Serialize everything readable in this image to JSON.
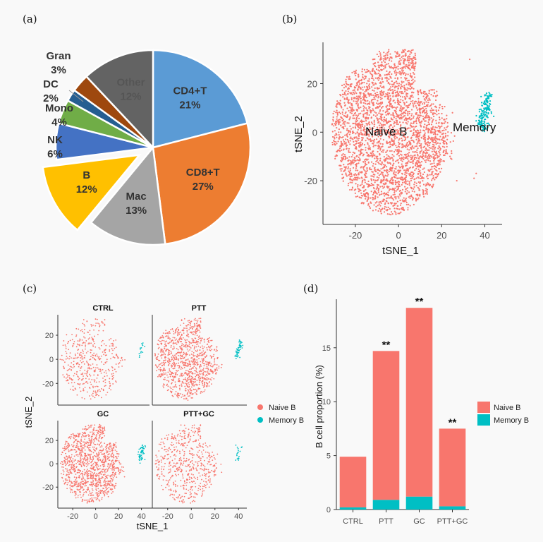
{
  "panel_labels": {
    "a": "(a)",
    "b": "(b)",
    "c": "(c)",
    "d": "(d)"
  },
  "chart_data": [
    {
      "id": "a",
      "type": "pie",
      "title": "",
      "labels": [
        "CD4+T",
        "CD8+T",
        "Mac",
        "B",
        "NK",
        "Mono",
        "DC",
        "Gran",
        "Other"
      ],
      "values": [
        21,
        27,
        13,
        12,
        6,
        4,
        2,
        3,
        12
      ],
      "value_labels": [
        "21%",
        "27%",
        "13%",
        "12%",
        "6%",
        "4%",
        "2%",
        "3%",
        "12%"
      ],
      "colors": [
        "#5b9bd5",
        "#ed7d31",
        "#a5a5a5",
        "#ffc000",
        "#4472c4",
        "#70ad47",
        "#255e91",
        "#9e480e",
        "#636363"
      ],
      "exploded": [
        "B"
      ]
    },
    {
      "id": "b",
      "type": "scatter",
      "xlabel": "tSNE_1",
      "ylabel": "tSNE_2",
      "xticks": [
        -20,
        0,
        20,
        40
      ],
      "yticks": [
        -20,
        0,
        20
      ],
      "xlim": [
        -35,
        48
      ],
      "ylim": [
        -38,
        37
      ],
      "annotations": [
        "Naive B",
        "Memory"
      ],
      "series": [
        {
          "name": "Naive B",
          "color": "#f8766d",
          "center": [
            -4,
            0
          ],
          "note": "large cloud spanning x -30..25, y -35..33"
        },
        {
          "name": "Memory B",
          "color": "#00bfc4",
          "center": [
            41,
            5
          ],
          "note": "small cluster x 37..44, y 0..15"
        }
      ]
    },
    {
      "id": "c",
      "type": "scatter",
      "xlabel": "tSNE_1",
      "ylabel": "tSNE_2",
      "xticks": [
        -20,
        0,
        20,
        40
      ],
      "yticks": [
        -20,
        0,
        20
      ],
      "xlim": [
        -33,
        47
      ],
      "ylim": [
        -38,
        37
      ],
      "facets": [
        "CTRL",
        "PTT",
        "GC",
        "PTT+GC"
      ],
      "legend": [
        "Naive B",
        "Memory B"
      ],
      "colors": {
        "Naive B": "#f8766d",
        "Memory B": "#00bfc4"
      }
    },
    {
      "id": "d",
      "type": "bar",
      "stacked": true,
      "categories": [
        "CTRL",
        "PTT",
        "GC",
        "PTT+GC"
      ],
      "series": [
        {
          "name": "Memory B",
          "values": [
            0.2,
            0.9,
            1.2,
            0.3
          ],
          "color": "#00bfc4"
        },
        {
          "name": "Naive B",
          "values": [
            4.7,
            13.8,
            17.5,
            7.2
          ],
          "color": "#f8766d"
        }
      ],
      "significance": [
        "",
        "**",
        "**",
        "**"
      ],
      "xlabel": "",
      "ylabel": "B cell proportion (%)",
      "yticks": [
        0,
        5,
        10,
        15
      ],
      "ylim": [
        0,
        19.5
      ],
      "legend": [
        "Naive B",
        "Memory B"
      ]
    }
  ]
}
